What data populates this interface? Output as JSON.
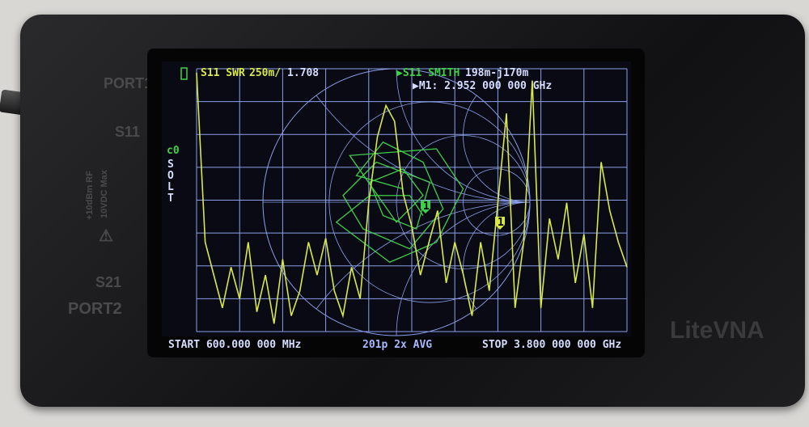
{
  "device": {
    "brand": "LiteVNA",
    "port1": "PORT1",
    "port2": "PORT2",
    "s11": "S11",
    "s21": "S21",
    "rating1": "+10dBm RF",
    "rating2": "10VDC Max"
  },
  "screen": {
    "trace1_label": "S11 SWR",
    "trace1_scale": "250m/",
    "trace1_value": "1.708",
    "trace2_label": "▶S11 SMITH",
    "trace2_value": "198m-j170m",
    "marker_line": "▶M1: 2.952 000 000 GHz",
    "cal_slot": "c0",
    "cal_type": "SOLT",
    "start": "START  600.000 000 MHz",
    "points": "201p  2x AVG",
    "stop": "STOP 3.800 000 000 GHz",
    "marker_id": "1"
  },
  "colors": {
    "trace1": "#d8e84a",
    "trace2": "#3fcf4a",
    "grid": "#8aa0e8",
    "text": "#d6ddff",
    "screen_bg": "#0a0a14"
  },
  "chart_data": {
    "type": "line",
    "xlim_mhz": [
      600,
      3800
    ],
    "swr_scale_per_div": 0.25,
    "swr_trace": [
      2.97,
      1.68,
      1.43,
      1.18,
      1.49,
      1.25,
      1.68,
      1.15,
      1.43,
      1.06,
      1.55,
      1.12,
      1.31,
      1.68,
      1.43,
      1.71,
      1.31,
      1.12,
      1.49,
      1.25,
      1.98,
      2.48,
      2.72,
      2.6,
      2.05,
      1.8,
      1.43,
      1.68,
      1.92,
      1.37,
      1.68,
      1.43,
      1.12,
      1.68,
      1.31,
      1.98,
      2.66,
      1.18,
      1.68,
      2.91,
      1.18,
      1.86,
      1.55,
      1.98,
      1.37,
      1.74,
      1.18,
      2.29,
      1.92,
      1.68,
      1.49
    ],
    "smith_trace": [
      [
        0.05,
        0.1
      ],
      [
        -0.3,
        0.2
      ],
      [
        -0.1,
        0.45
      ],
      [
        0.2,
        0.3
      ],
      [
        0.35,
        -0.05
      ],
      [
        0.1,
        -0.35
      ],
      [
        -0.25,
        -0.2
      ],
      [
        -0.4,
        0.05
      ],
      [
        -0.15,
        0.3
      ],
      [
        0.25,
        0.15
      ],
      [
        0.15,
        -0.2
      ],
      [
        -0.1,
        -0.1
      ],
      [
        -0.2,
        0.15
      ],
      [
        0.05,
        0.25
      ],
      [
        0.2,
        0.05
      ],
      [
        0.0,
        -0.15
      ],
      [
        -0.35,
        0.35
      ],
      [
        0.3,
        0.4
      ],
      [
        0.5,
        0.1
      ],
      [
        0.3,
        -0.3
      ],
      [
        -0.05,
        -0.45
      ],
      [
        -0.45,
        -0.15
      ],
      [
        -0.2,
        0.05
      ],
      [
        0.1,
        0.05
      ],
      [
        0.2,
        -0.1
      ]
    ]
  }
}
